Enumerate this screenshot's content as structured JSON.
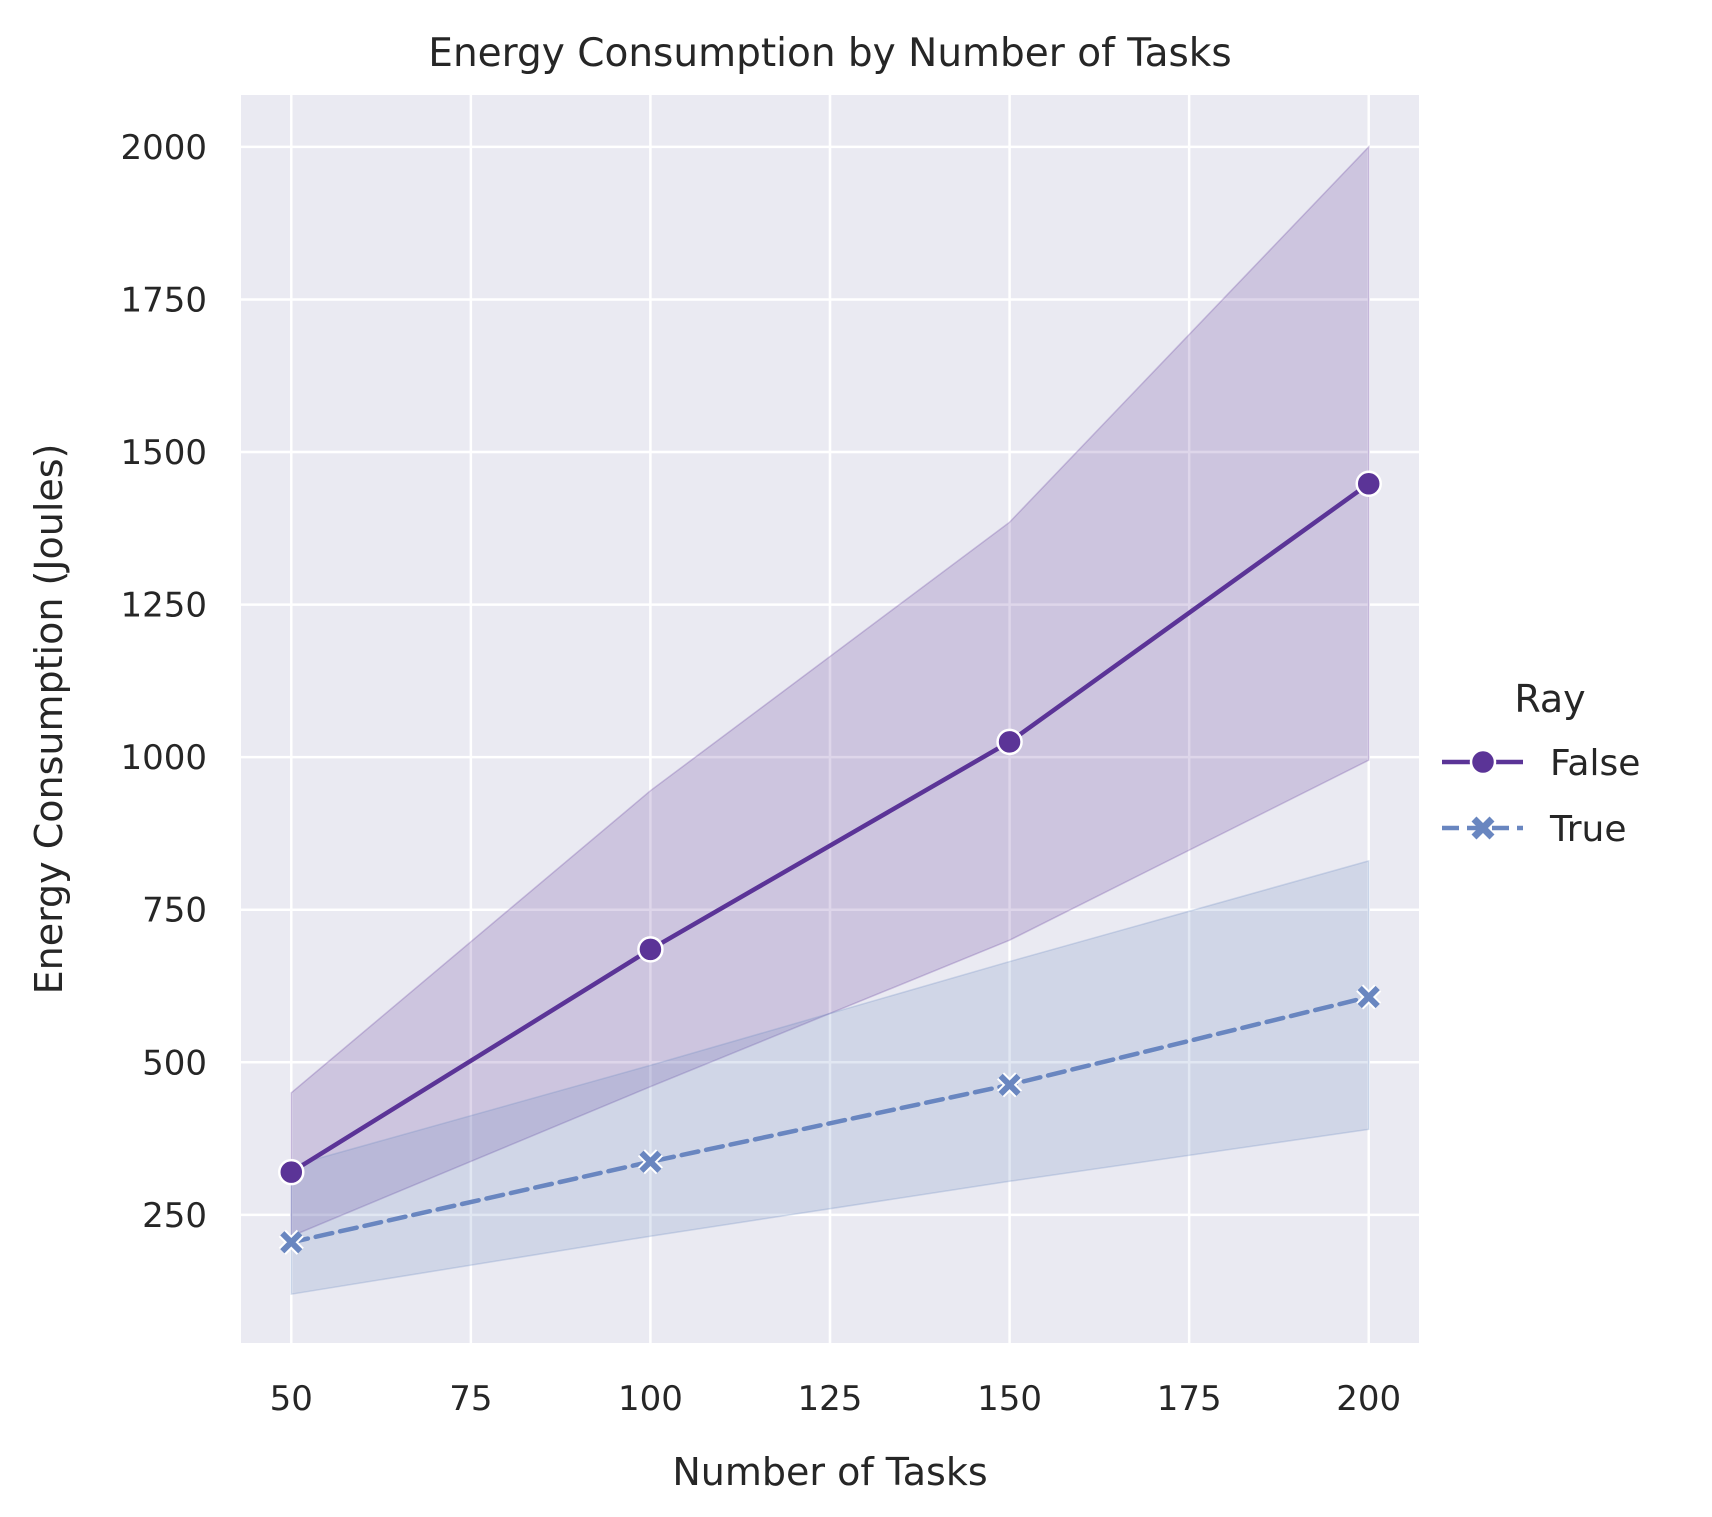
{
  "chart_data": {
    "type": "line",
    "title": "Energy Consumption by Number of Tasks",
    "xlabel": "Number of Tasks",
    "ylabel": "Energy Consumption (Joules)",
    "x": [
      50,
      100,
      150,
      200
    ],
    "xlim": [
      43,
      207
    ],
    "ylim": [
      40,
      2085
    ],
    "xticks": [
      50,
      75,
      100,
      125,
      150,
      175,
      200
    ],
    "yticks": [
      250,
      500,
      750,
      1000,
      1250,
      1500,
      1750,
      2000
    ],
    "grid": true,
    "legend": {
      "title": "Ray",
      "placement": "right"
    },
    "series": [
      {
        "name": "False",
        "color": "#5b3497",
        "marker": "circle",
        "linestyle": "solid",
        "values": [
          320,
          685,
          1025,
          1448
        ],
        "ci_lower": [
          215,
          460,
          700,
          995
        ],
        "ci_upper": [
          450,
          945,
          1385,
          2000
        ]
      },
      {
        "name": "True",
        "color": "#6986c0",
        "marker": "x",
        "linestyle": "dashed",
        "values": [
          205,
          337,
          463,
          607
        ],
        "ci_lower": [
          120,
          215,
          305,
          390
        ],
        "ci_upper": [
          330,
          495,
          665,
          830
        ]
      }
    ]
  }
}
